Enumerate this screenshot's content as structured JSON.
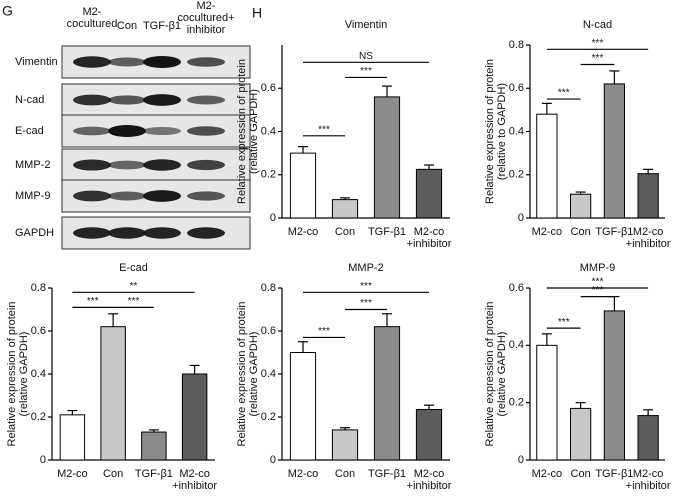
{
  "blot": {
    "panel": "G",
    "panel2": "H",
    "columns": [
      [
        "M2-",
        "cocultured"
      ],
      [
        "Con"
      ],
      [
        "TGF-β1"
      ],
      [
        "M2-",
        "cocultured+",
        "inhibitor"
      ]
    ],
    "rows": [
      "Vimentin",
      "N-cad",
      "E-cad",
      "MMP-2",
      "MMP-9",
      "GAPDH"
    ]
  },
  "chart_data": [
    {
      "type": "bar",
      "title": "Vimentin",
      "ylabel": [
        "Relative expression of protein",
        "(relative GAPDH)"
      ],
      "categories": [
        "M2-co",
        "Con",
        "TGF-β1",
        [
          "M2-co",
          "+inhibitor"
        ]
      ],
      "values": [
        0.3,
        0.085,
        0.56,
        0.225
      ],
      "errors": [
        0.03,
        0.008,
        0.05,
        0.02
      ],
      "colors": [
        "#ffffff",
        "#c8c8c8",
        "#8c8c8c",
        "#5c5c5c"
      ],
      "ylim": [
        0,
        0.8
      ],
      "yticks": [
        0,
        0.2,
        0.4,
        0.6
      ],
      "annotations": [
        {
          "from": 0,
          "to": 1,
          "label": "***",
          "y": 0.38
        },
        {
          "from": 1,
          "to": 2,
          "label": "***",
          "y": 0.65
        },
        {
          "from": 0,
          "to": 3,
          "label": "NS",
          "y": 0.72
        }
      ]
    },
    {
      "type": "bar",
      "title": "N-cad",
      "ylabel": [
        "Relative expression of protein",
        "(relative to GAPDH)"
      ],
      "categories": [
        "M2-co",
        "Con",
        "TGF-β1",
        [
          "M2-co",
          "+inhibitor"
        ]
      ],
      "values": [
        0.48,
        0.11,
        0.62,
        0.205
      ],
      "errors": [
        0.05,
        0.01,
        0.06,
        0.02
      ],
      "colors": [
        "#ffffff",
        "#c8c8c8",
        "#8c8c8c",
        "#5c5c5c"
      ],
      "ylim": [
        0,
        0.8
      ],
      "yticks": [
        0,
        0.2,
        0.4,
        0.6,
        0.8
      ],
      "annotations": [
        {
          "from": 0,
          "to": 1,
          "label": "***",
          "y": 0.55
        },
        {
          "from": 1,
          "to": 2,
          "label": "***",
          "y": 0.71
        },
        {
          "from": 0,
          "to": 3,
          "label": "***",
          "y": 0.78
        }
      ]
    },
    {
      "type": "bar",
      "title": "E-cad",
      "ylabel": [
        "Relative expression of protein",
        "(relative GAPDH)"
      ],
      "categories": [
        "M2-co",
        "Con",
        "TGF-β1",
        [
          "M2-co",
          "+inhibitor"
        ]
      ],
      "values": [
        0.21,
        0.62,
        0.13,
        0.4
      ],
      "errors": [
        0.02,
        0.06,
        0.01,
        0.04
      ],
      "colors": [
        "#ffffff",
        "#c8c8c8",
        "#8c8c8c",
        "#5c5c5c"
      ],
      "ylim": [
        0,
        0.8
      ],
      "yticks": [
        0,
        0.2,
        0.4,
        0.6,
        0.8
      ],
      "annotations": [
        {
          "from": 0,
          "to": 1,
          "label": "***",
          "y": 0.71
        },
        {
          "from": 1,
          "to": 2,
          "label": "***",
          "y": 0.71
        },
        {
          "from": 0,
          "to": 3,
          "label": "**",
          "y": 0.78
        }
      ]
    },
    {
      "type": "bar",
      "title": "MMP-2",
      "ylabel": [
        "Relative expression of protein",
        "(relative GAPDH)"
      ],
      "categories": [
        "M2-co",
        "Con",
        "TGF-β1",
        [
          "M2-co",
          "+inhibitor"
        ]
      ],
      "values": [
        0.5,
        0.14,
        0.62,
        0.235
      ],
      "errors": [
        0.05,
        0.01,
        0.06,
        0.02
      ],
      "colors": [
        "#ffffff",
        "#c8c8c8",
        "#8c8c8c",
        "#5c5c5c"
      ],
      "ylim": [
        0,
        0.8
      ],
      "yticks": [
        0,
        0.2,
        0.4,
        0.6,
        0.8
      ],
      "annotations": [
        {
          "from": 0,
          "to": 1,
          "label": "***",
          "y": 0.57
        },
        {
          "from": 1,
          "to": 2,
          "label": "***",
          "y": 0.7
        },
        {
          "from": 0,
          "to": 3,
          "label": "***",
          "y": 0.78
        }
      ]
    },
    {
      "type": "bar",
      "title": "MMP-9",
      "ylabel": [
        "Relative expression of protein",
        "(relative GAPDH)"
      ],
      "categories": [
        "M2-co",
        "Con",
        "TGF-β1",
        [
          "M2-co",
          "+inhibitor"
        ]
      ],
      "values": [
        0.4,
        0.18,
        0.52,
        0.155
      ],
      "errors": [
        0.04,
        0.02,
        0.05,
        0.02
      ],
      "colors": [
        "#ffffff",
        "#c8c8c8",
        "#8c8c8c",
        "#5c5c5c"
      ],
      "ylim": [
        0,
        0.6
      ],
      "yticks": [
        0,
        0.2,
        0.4,
        0.6
      ],
      "annotations": [
        {
          "from": 0,
          "to": 1,
          "label": "***",
          "y": 0.46
        },
        {
          "from": 1,
          "to": 2,
          "label": "***",
          "y": 0.57
        },
        {
          "from": 0,
          "to": 3,
          "label": "***",
          "y": 0.6
        }
      ]
    }
  ]
}
